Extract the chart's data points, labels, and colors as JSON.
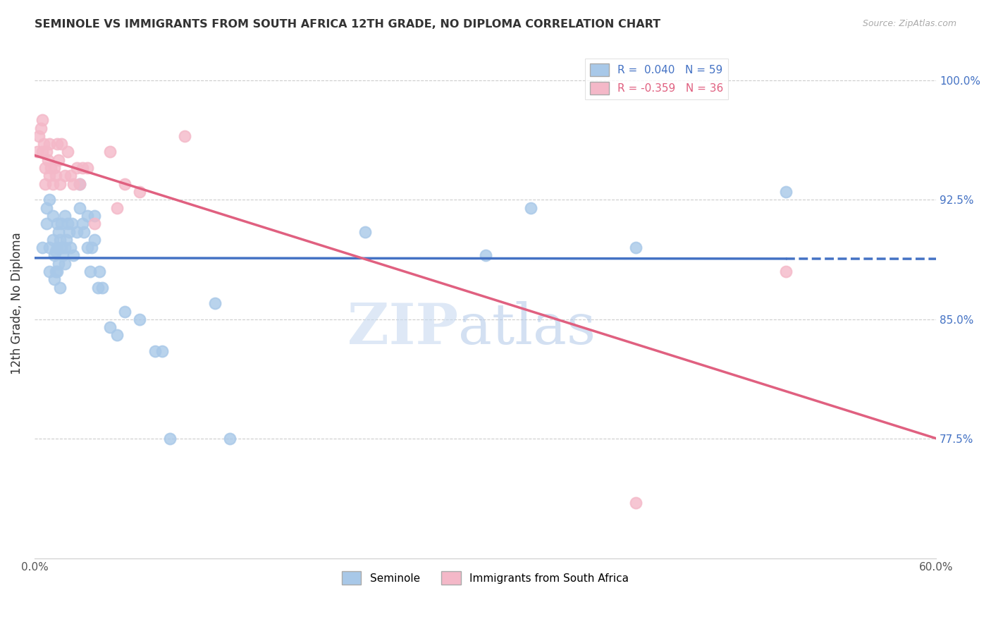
{
  "title": "SEMINOLE VS IMMIGRANTS FROM SOUTH AFRICA 12TH GRADE, NO DIPLOMA CORRELATION CHART",
  "source": "Source: ZipAtlas.com",
  "ylabel": "12th Grade, No Diploma",
  "ytick_labels": [
    "100.0%",
    "92.5%",
    "85.0%",
    "77.5%"
  ],
  "ytick_values": [
    1.0,
    0.925,
    0.85,
    0.775
  ],
  "xlim": [
    0.0,
    0.6
  ],
  "ylim": [
    0.7,
    1.02
  ],
  "blue_scatter_x": [
    0.005,
    0.008,
    0.008,
    0.01,
    0.01,
    0.01,
    0.012,
    0.012,
    0.013,
    0.013,
    0.014,
    0.014,
    0.015,
    0.015,
    0.015,
    0.016,
    0.016,
    0.017,
    0.017,
    0.018,
    0.018,
    0.019,
    0.02,
    0.02,
    0.02,
    0.021,
    0.022,
    0.023,
    0.024,
    0.025,
    0.026,
    0.028,
    0.03,
    0.03,
    0.032,
    0.033,
    0.035,
    0.035,
    0.037,
    0.038,
    0.04,
    0.04,
    0.042,
    0.043,
    0.045,
    0.05,
    0.055,
    0.06,
    0.07,
    0.08,
    0.085,
    0.09,
    0.12,
    0.13,
    0.22,
    0.3,
    0.33,
    0.4,
    0.5
  ],
  "blue_scatter_y": [
    0.895,
    0.91,
    0.92,
    0.925,
    0.88,
    0.895,
    0.9,
    0.915,
    0.875,
    0.89,
    0.88,
    0.893,
    0.88,
    0.895,
    0.91,
    0.885,
    0.905,
    0.87,
    0.9,
    0.895,
    0.91,
    0.89,
    0.885,
    0.895,
    0.915,
    0.9,
    0.91,
    0.905,
    0.895,
    0.91,
    0.89,
    0.905,
    0.92,
    0.935,
    0.91,
    0.905,
    0.895,
    0.915,
    0.88,
    0.895,
    0.9,
    0.915,
    0.87,
    0.88,
    0.87,
    0.845,
    0.84,
    0.855,
    0.85,
    0.83,
    0.83,
    0.775,
    0.86,
    0.775,
    0.905,
    0.89,
    0.92,
    0.895,
    0.93
  ],
  "pink_scatter_x": [
    0.002,
    0.003,
    0.004,
    0.005,
    0.005,
    0.006,
    0.007,
    0.007,
    0.008,
    0.009,
    0.01,
    0.01,
    0.011,
    0.012,
    0.013,
    0.014,
    0.015,
    0.016,
    0.017,
    0.018,
    0.02,
    0.022,
    0.024,
    0.026,
    0.028,
    0.03,
    0.032,
    0.035,
    0.04,
    0.05,
    0.055,
    0.06,
    0.07,
    0.1,
    0.4,
    0.5
  ],
  "pink_scatter_y": [
    0.955,
    0.965,
    0.97,
    0.975,
    0.955,
    0.96,
    0.945,
    0.935,
    0.955,
    0.95,
    0.94,
    0.96,
    0.945,
    0.935,
    0.945,
    0.94,
    0.96,
    0.95,
    0.935,
    0.96,
    0.94,
    0.955,
    0.94,
    0.935,
    0.945,
    0.935,
    0.945,
    0.945,
    0.91,
    0.955,
    0.92,
    0.935,
    0.93,
    0.965,
    0.735,
    0.88
  ],
  "blue_line_color": "#4472c4",
  "pink_line_color": "#e06080",
  "blue_dot_color": "#a8c8e8",
  "pink_dot_color": "#f4b8c8",
  "blue_r": 0.04,
  "pink_r": -0.359,
  "blue_n": 59,
  "pink_n": 36,
  "watermark_zip": "ZIP",
  "watermark_atlas": "atlas",
  "watermark_color_zip": "#c8daf0",
  "watermark_color_atlas": "#b0c8e8"
}
